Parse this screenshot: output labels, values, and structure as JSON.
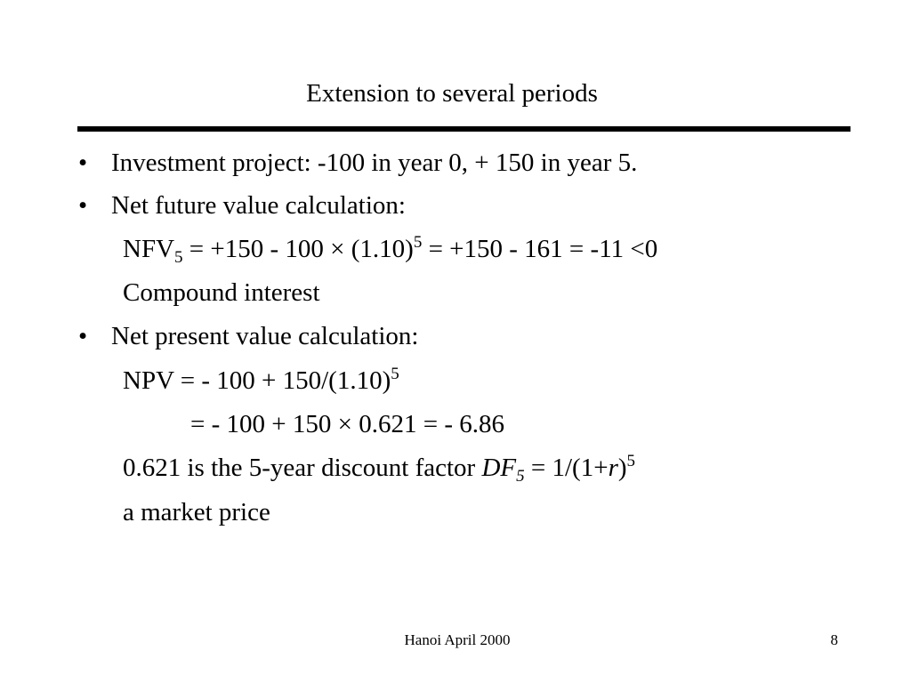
{
  "slide": {
    "title": "Extension to several periods",
    "bullet_char": "•",
    "bullets": [
      "Investment project: -100 in year 0, + 150 in year 5.",
      "Net future value calculation:",
      "Net present value calculation:"
    ],
    "nfv": {
      "lhs": "NFV",
      "lhs_sub": "5",
      "expr": " = +150 - 100 × (1.10)",
      "expr_sup": "5",
      "result": " =  +150 - 161 = -11 <0"
    },
    "compound_interest": "Compound interest",
    "npv": {
      "line1": "NPV = - 100 + 150/(1.10)",
      "line1_sup": "5",
      "line2": "= - 100 + 150 × 0.621 = - 6.86"
    },
    "df": {
      "text": "0.621 is the 5-year discount factor ",
      "symbol": "DF",
      "symbol_sub": "5",
      "eq": " = 1/(1+",
      "r": "r",
      "close": ")",
      "sup": "5"
    },
    "market_price": "a market price"
  },
  "footer": {
    "center": "Hanoi April 2000",
    "page_number": "8"
  }
}
